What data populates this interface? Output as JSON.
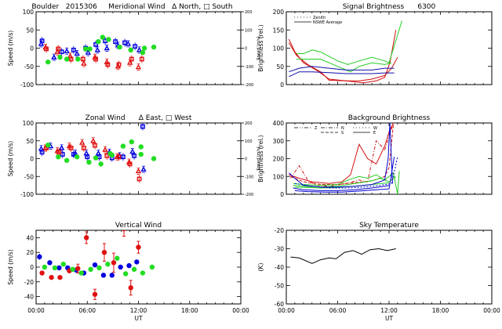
{
  "figure": {
    "x_ticks": [
      "00:00",
      "06:00",
      "12:00",
      "18:00",
      "00:00"
    ],
    "x_label": "UT"
  },
  "chart_data": [
    {
      "id": "meridional",
      "type": "scatter",
      "title": "Boulder   2015306     Meridional Wind   Δ North, □ South",
      "ylabel": "Speed (m/s)",
      "ylabel_right": "Speed (m/s)",
      "ylim": [
        -100,
        100
      ],
      "yticks": [
        "100",
        "50",
        "0",
        "-50",
        "-100"
      ],
      "yticks_right": [
        "200",
        "100",
        "0",
        "-100",
        "-200"
      ],
      "xlim": [
        0,
        24
      ],
      "series": [
        {
          "name": "blue-north",
          "color": "#0000dd",
          "marker": "tri",
          "x": [
            0.6,
            2.1,
            3.6,
            4.8,
            6.1,
            7.2,
            8.3,
            9.6,
            10.8,
            12.1
          ],
          "y": [
            12,
            -25,
            -8,
            -15,
            -12,
            -5,
            0,
            8,
            12,
            -5
          ]
        },
        {
          "name": "blue-south",
          "color": "#0000dd",
          "marker": "sq",
          "x": [
            0.7,
            3.0,
            4.4,
            5.8,
            7.0,
            8.1,
            9.3,
            10.4,
            11.6
          ],
          "y": [
            20,
            -10,
            -5,
            0,
            10,
            20,
            18,
            15,
            5
          ]
        },
        {
          "name": "red-north",
          "color": "#e01010",
          "marker": "tri",
          "x": [
            1.1,
            2.5,
            4.0,
            5.6,
            6.9,
            8.3,
            9.6,
            11.0,
            12.0
          ],
          "y": [
            2,
            -10,
            -22,
            -42,
            -25,
            -38,
            -50,
            -40,
            -52
          ]
        },
        {
          "name": "red-south",
          "color": "#e01010",
          "marker": "sq",
          "x": [
            1.2,
            2.6,
            4.1,
            5.5,
            7.0,
            8.4,
            9.7,
            11.2,
            12.4
          ],
          "y": [
            -2,
            -2,
            -30,
            -30,
            -30,
            -45,
            -45,
            -30,
            -30
          ]
        },
        {
          "name": "green",
          "color": "#22dd22",
          "marker": "dot",
          "x": [
            1.4,
            2.8,
            3.6,
            4.9,
            6.3,
            7.3,
            8.5,
            9.8,
            11.1,
            12.5,
            13.8
          ],
          "y": [
            -38,
            -25,
            -30,
            -30,
            -2,
            18,
            24,
            3,
            -5,
            -12,
            3
          ]
        },
        {
          "name": "green-2",
          "color": "#22dd22",
          "marker": "dot",
          "x": [
            5.8,
            7.8,
            12.7
          ],
          "y": [
            -2,
            30,
            0
          ]
        }
      ]
    },
    {
      "id": "zonal",
      "type": "scatter",
      "title": "Zonal Wind      Δ East, □ West",
      "ylabel": "Speed (m/s)",
      "ylabel_right": "Speed (m/s)",
      "ylim": [
        -100,
        100
      ],
      "yticks": [
        "100",
        "50",
        "0",
        "-50",
        "-100"
      ],
      "yticks_right": [
        "200",
        "100",
        "0",
        "-100",
        "-200"
      ],
      "xlim": [
        0,
        24
      ],
      "series": [
        {
          "name": "blue-east",
          "color": "#0000dd",
          "marker": "tri",
          "x": [
            0.6,
            1.7,
            3.0,
            4.6,
            5.9,
            7.3,
            8.6,
            9.8,
            11.3,
            12.6
          ],
          "y": [
            28,
            35,
            30,
            15,
            15,
            15,
            18,
            8,
            20,
            -30
          ]
        },
        {
          "name": "blue-west",
          "color": "#0000dd",
          "marker": "sq",
          "x": [
            0.7,
            3.1,
            4.4,
            6.0,
            7.4,
            8.9,
            10.2,
            11.5,
            12.5
          ],
          "y": [
            18,
            12,
            12,
            5,
            5,
            2,
            5,
            8,
            90
          ]
        },
        {
          "name": "red-east",
          "color": "#e01010",
          "marker": "tri",
          "x": [
            1.1,
            2.5,
            3.9,
            5.4,
            6.7,
            8.1,
            9.5,
            10.9,
            12.0
          ],
          "y": [
            30,
            22,
            35,
            45,
            50,
            25,
            5,
            -10,
            -35
          ]
        },
        {
          "name": "red-west",
          "color": "#e01010",
          "marker": "sq",
          "x": [
            1.2,
            2.7,
            4.1,
            5.6,
            6.9,
            8.3,
            9.7,
            11.0,
            12.1
          ],
          "y": [
            30,
            18,
            30,
            30,
            37,
            8,
            5,
            -15,
            -57
          ]
        },
        {
          "name": "green",
          "color": "#22dd22",
          "marker": "dot",
          "x": [
            1.4,
            2.6,
            3.6,
            4.8,
            6.2,
            7.6,
            8.9,
            10.2,
            11.2,
            12.3,
            13.8
          ],
          "y": [
            38,
            5,
            -5,
            5,
            -10,
            -15,
            10,
            35,
            47,
            33,
            0
          ]
        },
        {
          "name": "green-2",
          "color": "#22dd22",
          "marker": "dot",
          "x": [
            7.0,
            8.7,
            12.3
          ],
          "y": [
            2,
            14,
            12
          ]
        }
      ]
    },
    {
      "id": "vertical",
      "type": "scatter",
      "title": "Vertical Wind",
      "ylabel": "Speed (m/s)",
      "ylim": [
        -50,
        50
      ],
      "yticks": [
        "40",
        "20",
        "0",
        "-20",
        "-40"
      ],
      "xlim": [
        0,
        24
      ],
      "series": [
        {
          "name": "blue",
          "color": "#0000dd",
          "marker": "dot",
          "x": [
            0.4,
            1.6,
            2.7,
            3.7,
            4.7,
            5.6,
            6.9,
            7.9,
            8.9,
            9.9,
            10.9,
            11.8
          ],
          "y": [
            14,
            6,
            -1,
            -1,
            -4,
            -8,
            3,
            -11,
            -11,
            0,
            2,
            7
          ]
        },
        {
          "name": "red",
          "color": "#e01010",
          "marker": "dot",
          "x": [
            0.7,
            1.8,
            2.8,
            3.9,
            4.9,
            5.9,
            6.9,
            8.0,
            9.1,
            10.3,
            11.1,
            12.0
          ],
          "y": [
            -8,
            -14,
            -14,
            -5,
            -2,
            40,
            -37,
            20,
            6,
            52,
            -28,
            27
          ]
        },
        {
          "name": "red-err",
          "color": "#e01010",
          "marker": "err",
          "x": [
            4.9,
            5.9,
            6.9,
            8.0,
            9.1,
            10.3,
            11.1,
            12.0
          ],
          "y": [
            6,
            8,
            7,
            12,
            13,
            10,
            10,
            8
          ]
        },
        {
          "name": "green",
          "color": "#22dd22",
          "marker": "dot",
          "x": [
            1.0,
            2.2,
            3.2,
            4.3,
            5.3,
            6.4,
            7.4,
            8.4,
            9.5,
            10.5,
            11.5,
            12.5,
            13.6
          ],
          "y": [
            0,
            -1,
            4,
            -3,
            -8,
            -3,
            -1,
            4,
            12,
            -9,
            -3,
            -8,
            0
          ]
        }
      ]
    },
    {
      "id": "signal",
      "type": "line",
      "title": "Signal Brightness      6300",
      "ylabel": "Brightness (rel.)",
      "ylim": [
        0,
        200
      ],
      "yticks": [
        "200",
        "150",
        "100",
        "50",
        "0"
      ],
      "xlim": [
        0,
        24
      ],
      "legend": [
        {
          "style": "dotted",
          "label": "Zenith"
        },
        {
          "style": "solid",
          "label": "NSWE Average"
        }
      ],
      "legend_position": "top-left",
      "series": [
        {
          "name": "red-1",
          "color": "#d01010",
          "x": [
            0.3,
            1.0,
            2.0,
            3.5,
            5.0,
            7.0,
            9.0,
            10.5,
            11.5,
            12.1,
            12.8
          ],
          "y": [
            125,
            90,
            60,
            40,
            15,
            10,
            5,
            10,
            20,
            60,
            150
          ]
        },
        {
          "name": "red-2",
          "color": "#d01010",
          "x": [
            0.3,
            1.2,
            2.5,
            4.0,
            5.0,
            7.0,
            8.5,
            10.0,
            11.5,
            12.3,
            13.0
          ],
          "y": [
            115,
            80,
            55,
            35,
            12,
            10,
            10,
            15,
            25,
            45,
            75
          ]
        },
        {
          "name": "green-1",
          "color": "#22cc22",
          "x": [
            1.2,
            2.0,
            3.0,
            4.0,
            6.0,
            7.2,
            8.5,
            10.0,
            11.5,
            12.0,
            13.5
          ],
          "y": [
            85,
            85,
            95,
            90,
            65,
            55,
            65,
            75,
            65,
            60,
            175
          ]
        },
        {
          "name": "green-2",
          "color": "#22cc22",
          "x": [
            1.2,
            2.5,
            4.0,
            6.0,
            7.5,
            8.5,
            10.0,
            11.5,
            12.3
          ],
          "y": [
            70,
            70,
            70,
            50,
            35,
            50,
            60,
            55,
            60
          ]
        },
        {
          "name": "blue-1",
          "color": "#1010aa",
          "x": [
            0.3,
            1.5,
            3.0,
            5.0,
            7.0,
            8.5,
            10.0,
            11.5,
            12.6
          ],
          "y": [
            35,
            45,
            50,
            45,
            40,
            40,
            40,
            45,
            45
          ]
        },
        {
          "name": "blue-2",
          "color": "#1010aa",
          "x": [
            0.3,
            1.5,
            3.0,
            5.0,
            7.0,
            8.5,
            10.0,
            11.5,
            12.6
          ],
          "y": [
            22,
            35,
            35,
            33,
            30,
            30,
            30,
            32,
            32
          ]
        }
      ]
    },
    {
      "id": "background",
      "type": "line",
      "title": "Background Brightness",
      "ylabel": "Brightness (rel.)",
      "ylim": [
        0,
        400
      ],
      "yticks": [
        "400",
        "300",
        "200",
        "100",
        "0"
      ],
      "xlim": [
        0,
        24
      ],
      "legend": [
        {
          "style": "dashdotdot",
          "label": "Z"
        },
        {
          "style": "dashdot",
          "label": "N"
        },
        {
          "style": "dashed",
          "label": "S"
        },
        {
          "style": "dotted",
          "label": "W"
        },
        {
          "style": "solid",
          "label": "E"
        }
      ],
      "legend_position": "top-left",
      "series": [
        {
          "name": "red-solid",
          "color": "#d01010",
          "dash": "",
          "x": [
            0.3,
            1.5,
            3.0,
            5.0,
            6.5,
            7.5,
            8.5,
            9.5,
            10.5,
            11.5,
            12.0,
            12.5
          ],
          "y": [
            110,
            90,
            70,
            60,
            70,
            110,
            280,
            200,
            170,
            270,
            350,
            400
          ]
        },
        {
          "name": "red-dashdot",
          "color": "#d01010",
          "dash": "4,2,1,2",
          "x": [
            0.5,
            1.5,
            2.5,
            3.5,
            5.0,
            7.0,
            8.5,
            9.5,
            10.5,
            11.5,
            12.5
          ],
          "y": [
            90,
            160,
            80,
            50,
            45,
            60,
            80,
            70,
            300,
            250,
            400
          ]
        },
        {
          "name": "red-dashed",
          "color": "#d01010",
          "dash": "4,2",
          "x": [
            0.5,
            2.0,
            4.0,
            6.0,
            8.0,
            10.0,
            11.5,
            12.0,
            12.5
          ],
          "y": [
            100,
            70,
            55,
            55,
            65,
            75,
            100,
            150,
            390
          ]
        },
        {
          "name": "green-1",
          "color": "#22cc22",
          "dash": "",
          "x": [
            0.8,
            2.0,
            4.0,
            6.0,
            7.5,
            8.5,
            9.5,
            10.5,
            11.5,
            12.5,
            13.0,
            13.2
          ],
          "y": [
            60,
            55,
            50,
            55,
            85,
            100,
            90,
            110,
            80,
            120,
            0,
            130
          ]
        },
        {
          "name": "green-2",
          "color": "#22cc22",
          "dash": "",
          "x": [
            0.8,
            2.0,
            4.0,
            6.0,
            8.0,
            10.0,
            11.0,
            12.0,
            12.8
          ],
          "y": [
            50,
            45,
            40,
            45,
            60,
            75,
            90,
            70,
            100
          ]
        },
        {
          "name": "green-3",
          "color": "#22cc22",
          "dash": "",
          "x": [
            1.0,
            2.5,
            4.0,
            6.0,
            8.0,
            10.0,
            12.0
          ],
          "y": [
            40,
            38,
            35,
            38,
            45,
            55,
            65
          ]
        },
        {
          "name": "blue-1",
          "color": "#0000cc",
          "dash": "",
          "x": [
            0.3,
            1.0,
            2.0,
            4.0,
            6.0,
            8.0,
            10.0,
            11.5,
            11.9,
            12.1,
            12.4
          ],
          "y": [
            120,
            90,
            50,
            40,
            40,
            45,
            55,
            80,
            200,
            400,
            60
          ]
        },
        {
          "name": "blue-2",
          "color": "#0000cc",
          "dash": "",
          "x": [
            0.8,
            2.0,
            4.0,
            6.0,
            8.0,
            10.0,
            11.5,
            12.0
          ],
          "y": [
            35,
            25,
            20,
            20,
            25,
            35,
            45,
            50
          ]
        },
        {
          "name": "blue-3",
          "color": "#0000cc",
          "dash": "",
          "x": [
            1.0,
            2.5,
            4.5,
            6.5,
            8.5,
            10.5,
            12.0,
            12.6
          ],
          "y": [
            20,
            15,
            12,
            12,
            18,
            25,
            30,
            210
          ]
        },
        {
          "name": "blue-4",
          "color": "#0000cc",
          "dash": "2,2",
          "x": [
            1.0,
            3.0,
            5.0,
            7.0,
            9.0,
            11.0,
            12.3,
            13.0
          ],
          "y": [
            60,
            45,
            35,
            35,
            40,
            50,
            60,
            210
          ]
        }
      ]
    },
    {
      "id": "sky",
      "type": "line",
      "title": "Sky Temperature",
      "ylabel": "(K)",
      "ylim": [
        -60,
        -20
      ],
      "yticks": [
        "-20",
        "-30",
        "-40",
        "-50",
        "-60"
      ],
      "xlim": [
        0,
        24
      ],
      "series": [
        {
          "name": "temperature",
          "color": "#000000",
          "x": [
            0.5,
            1.5,
            3.0,
            4.0,
            5.0,
            5.8,
            6.8,
            7.8,
            8.8,
            9.8,
            10.8,
            11.8,
            12.8
          ],
          "y": [
            -34.5,
            -35,
            -38,
            -36,
            -35,
            -35.5,
            -32,
            -31,
            -33,
            -30.5,
            -30,
            -31,
            -30
          ]
        }
      ]
    }
  ]
}
